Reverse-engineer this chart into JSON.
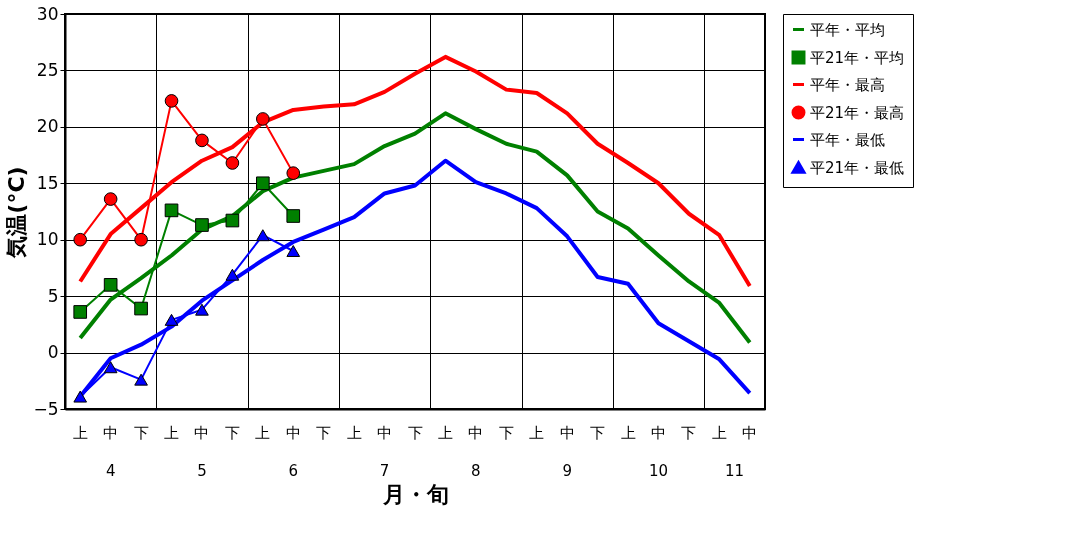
{
  "chart_data": {
    "type": "line",
    "xlabel": "月・旬",
    "ylabel": "気温(°C)",
    "categories": [
      "上",
      "中",
      "下",
      "上",
      "中",
      "下",
      "上",
      "中",
      "下",
      "上",
      "中",
      "下",
      "上",
      "中",
      "下",
      "上",
      "中",
      "下",
      "上",
      "中",
      "下",
      "上",
      "中"
    ],
    "annotations": [
      "4",
      "5",
      "6",
      "7",
      "8",
      "9",
      "10",
      "11"
    ],
    "ylim": [
      -5,
      30
    ],
    "yticks": [
      -5,
      0,
      5,
      10,
      15,
      20,
      25,
      30
    ],
    "grid": true,
    "legend": "right",
    "series": [
      {
        "name": "平年・平均",
        "color": "#008000",
        "marker": "none",
        "values": [
          1.3,
          4.7,
          6.6,
          8.6,
          10.9,
          12.1,
          14.3,
          15.5,
          16.1,
          16.7,
          18.3,
          19.4,
          21.2,
          19.8,
          18.5,
          17.8,
          15.7,
          12.5,
          11.0,
          8.6,
          6.3,
          4.4,
          0.9
        ]
      },
      {
        "name": "平21年・平均",
        "color": "#008000",
        "marker": "square",
        "values": [
          3.6,
          6.0,
          3.9,
          12.6,
          11.3,
          11.7,
          15.0,
          12.1,
          null,
          null,
          null,
          null,
          null,
          null,
          null,
          null,
          null,
          null,
          null,
          null,
          null,
          null,
          null
        ]
      },
      {
        "name": "平年・最高",
        "color": "#ff0000",
        "marker": "none",
        "values": [
          6.3,
          10.5,
          12.8,
          15.1,
          17.0,
          18.2,
          20.4,
          21.5,
          21.8,
          22.0,
          23.1,
          24.7,
          26.2,
          24.9,
          23.3,
          23.0,
          21.2,
          18.5,
          16.8,
          15.0,
          12.3,
          10.4,
          5.9
        ]
      },
      {
        "name": "平21年・最高",
        "color": "#ff0000",
        "marker": "circle",
        "values": [
          10.0,
          13.6,
          10.0,
          22.3,
          18.8,
          16.8,
          20.7,
          15.9,
          null,
          null,
          null,
          null,
          null,
          null,
          null,
          null,
          null,
          null,
          null,
          null,
          null,
          null,
          null
        ]
      },
      {
        "name": "平年・最低",
        "color": "#0000ff",
        "marker": "none",
        "values": [
          -3.9,
          -0.5,
          0.7,
          2.3,
          4.6,
          6.4,
          8.2,
          9.8,
          10.9,
          12.0,
          14.1,
          14.8,
          17.0,
          15.1,
          14.1,
          12.8,
          10.3,
          6.7,
          6.1,
          2.6,
          1.0,
          -0.6,
          -3.6
        ]
      },
      {
        "name": "平21年・最低",
        "color": "#0000ff",
        "marker": "triangle",
        "values": [
          -3.9,
          -1.3,
          -2.4,
          2.9,
          3.8,
          6.9,
          10.4,
          9.0,
          null,
          null,
          null,
          null,
          null,
          null,
          null,
          null,
          null,
          null,
          null,
          null,
          null,
          null,
          null
        ]
      }
    ]
  }
}
